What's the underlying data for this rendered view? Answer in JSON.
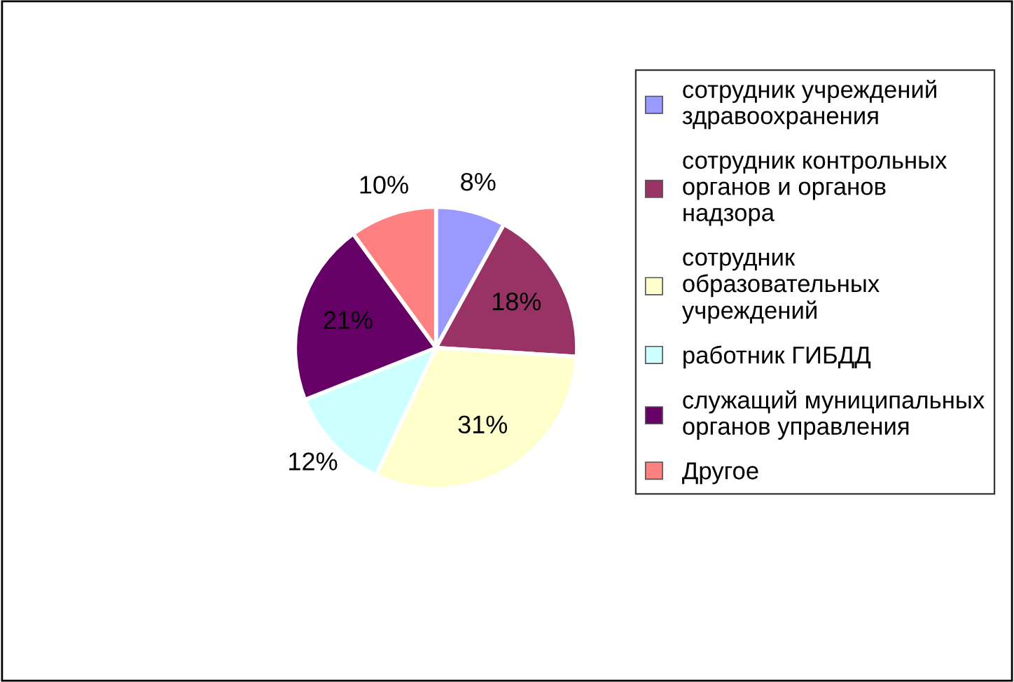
{
  "chart_data": {
    "type": "pie",
    "categories": [
      "сотрудник учреждений здравоохранения",
      "сотрудник контрольных органов и органов надзора",
      "сотрудник образовательных учреждений",
      "работник ГИБДД",
      "служащий муниципальных органов управления",
      "Другое"
    ],
    "values": [
      8,
      18,
      31,
      12,
      21,
      10
    ],
    "value_labels": [
      "8%",
      "18%",
      "31%",
      "12%",
      "21%",
      "10%"
    ],
    "colors": [
      "#9999ff",
      "#993366",
      "#ffffcc",
      "#ccffff",
      "#660066",
      "#ff8080"
    ],
    "legend": "right"
  }
}
